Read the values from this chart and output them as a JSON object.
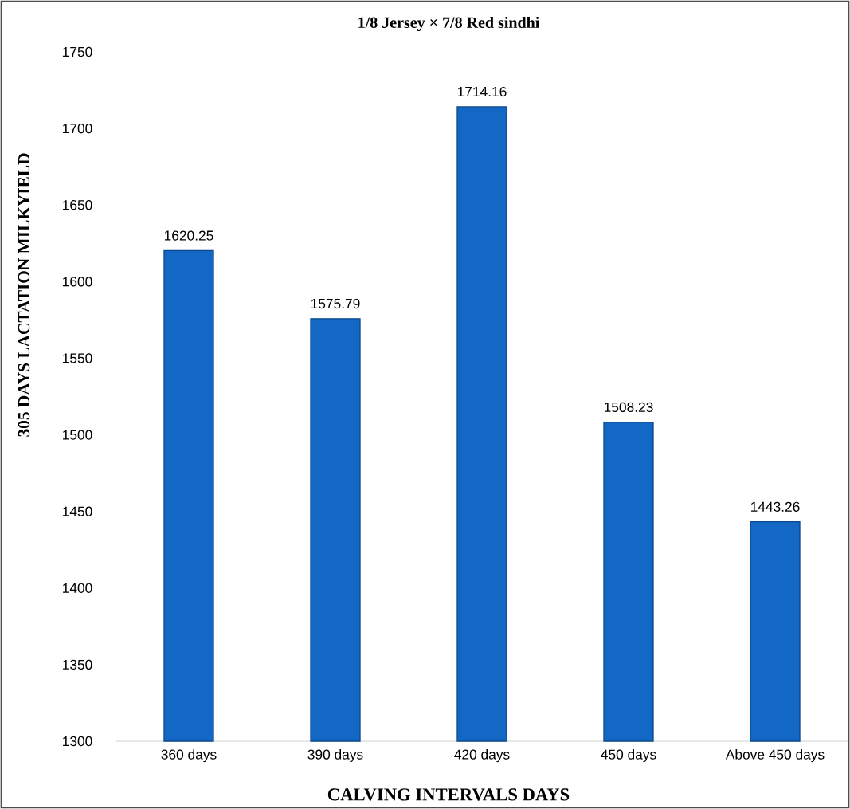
{
  "chart_data": {
    "type": "bar",
    "title": "1/8 Jersey × 7/8 Red sindhi",
    "xlabel": "CALVING INTERVALS DAYS",
    "ylabel": "305 DAYS LACTATION MILKYIELD",
    "categories": [
      "360 days",
      "390 days",
      "420 days",
      "450 days",
      "Above 450 days"
    ],
    "values": [
      1620.25,
      1575.79,
      1714.16,
      1508.23,
      1443.26
    ],
    "color": "#1268c4",
    "ylim": [
      1300,
      1750
    ],
    "yticks": [
      1300,
      1350,
      1400,
      1450,
      1500,
      1550,
      1600,
      1650,
      1700,
      1750
    ],
    "data_labels": true
  }
}
